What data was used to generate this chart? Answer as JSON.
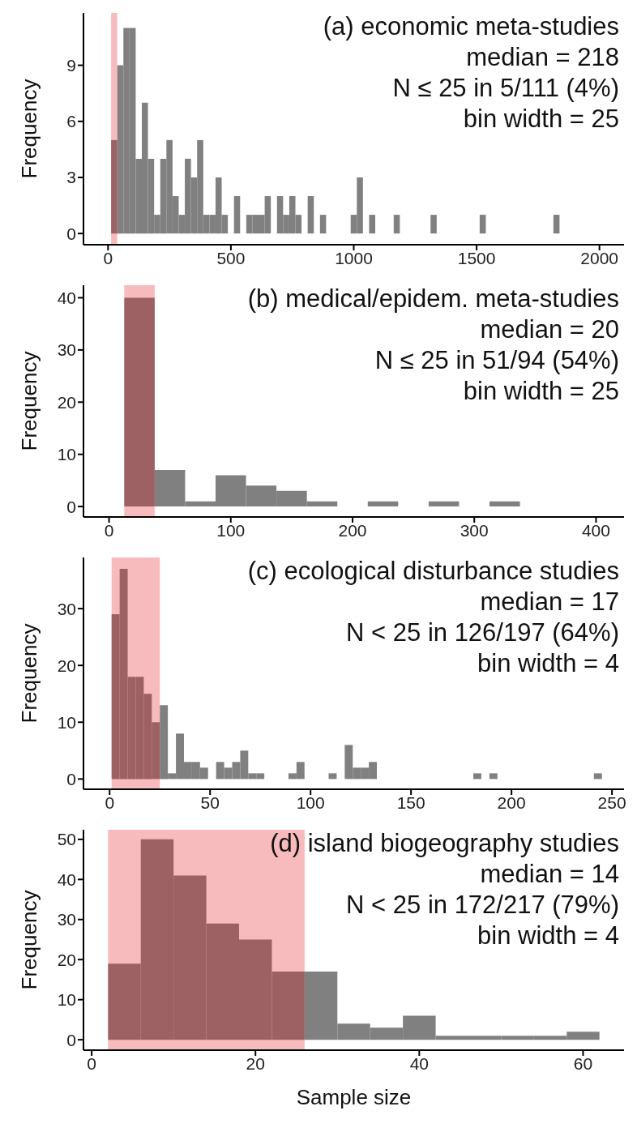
{
  "chart_data": [
    {
      "type": "histogram",
      "ylabel": "Frequency",
      "annotations": [
        "(a) economic meta-studies",
        "median = 218",
        "N ≤ 25 in 5/111 (4%)",
        "bin width = 25"
      ],
      "color": "#808080",
      "bins": [
        12.5,
        37.5,
        62.5,
        87.5,
        112.5,
        137.5,
        162.5,
        187.5,
        212.5,
        237.5,
        262.5,
        287.5,
        312.5,
        337.5,
        362.5,
        387.5,
        412.5,
        437.5,
        462.5,
        487.5,
        512.5,
        537.5,
        562.5,
        587.5,
        612.5,
        637.5,
        662.5,
        687.5,
        712.5,
        737.5,
        762.5,
        787.5,
        812.5,
        837.5,
        862.5,
        887.5,
        912.5,
        937.5,
        962.5,
        987.5,
        1012.5,
        1037.5,
        1062.5,
        1087.5,
        1112.5,
        1137.5,
        1162.5,
        1187.5,
        1212.5,
        1237.5,
        1262.5,
        1287.5,
        1312.5,
        1337.5,
        1362.5,
        1387.5,
        1412.5,
        1437.5,
        1462.5,
        1487.5,
        1512.5,
        1537.5,
        1562.5,
        1587.5,
        1612.5,
        1637.5,
        1662.5,
        1687.5,
        1712.5,
        1737.5,
        1762.5,
        1787.5,
        1812.5,
        1837.5
      ],
      "values": [
        5,
        9,
        11,
        11,
        4,
        7,
        4,
        1,
        4,
        5,
        2,
        1,
        4,
        3,
        5,
        1,
        1,
        3,
        1,
        0,
        2,
        0,
        1,
        1,
        1,
        2,
        0,
        2,
        1,
        2,
        1,
        0,
        2,
        0,
        1,
        0,
        0,
        0,
        0,
        1,
        3,
        0,
        1,
        0,
        0,
        0,
        1,
        0,
        0,
        0,
        0,
        0,
        1,
        0,
        0,
        0,
        0,
        0,
        0,
        0,
        1,
        0,
        0,
        0,
        0,
        0,
        0,
        0,
        0,
        0,
        0,
        0,
        1
      ],
      "bands": [
        {
          "axis": "x",
          "from": 12.5,
          "to": 37.5,
          "color": "#e8141c"
        }
      ],
      "xlim": [
        -100,
        2100
      ],
      "xticks": [
        0,
        500,
        1000,
        1500,
        2000
      ],
      "ylim": [
        -0.6,
        11.8
      ],
      "yticks": [
        0,
        3,
        6,
        9
      ]
    },
    {
      "type": "histogram",
      "ylabel": "Frequency",
      "annotations": [
        "(b) medical/epidem. meta-studies",
        "median = 20",
        "N ≤ 25 in 51/94 (54%)",
        "bin width = 25"
      ],
      "color": "#808080",
      "bins": [
        12.5,
        37.5,
        62.5,
        87.5,
        112.5,
        137.5,
        162.5,
        187.5,
        212.5,
        237.5,
        262.5,
        287.5,
        312.5,
        337.5
      ],
      "values": [
        40,
        7,
        1,
        6,
        4,
        3,
        1,
        0,
        1,
        0,
        1,
        0,
        1
      ],
      "bands": [
        {
          "axis": "x",
          "from": 12.5,
          "to": 37.5,
          "color": "#e8141c"
        }
      ],
      "xlim": [
        -21,
        423
      ],
      "xticks": [
        0,
        100,
        200,
        300,
        400
      ],
      "ylim": [
        -2,
        42.4
      ],
      "yticks": [
        0,
        10,
        20,
        30,
        40
      ]
    },
    {
      "type": "histogram",
      "ylabel": "Frequency",
      "annotations": [
        "(c) ecological disturbance studies",
        "median = 17",
        "N < 25 in 126/197 (64%)",
        "bin width = 4"
      ],
      "color": "#808080",
      "bins": [
        1,
        5,
        9,
        13,
        17,
        21,
        25,
        29,
        33,
        37,
        41,
        45,
        49,
        53,
        57,
        61,
        65,
        69,
        73,
        77,
        81,
        85,
        89,
        93,
        97,
        101,
        105,
        109,
        113,
        117,
        121,
        125,
        129,
        133,
        137,
        141,
        145,
        149,
        153,
        157,
        161,
        165,
        169,
        173,
        177,
        181,
        185,
        189,
        193,
        197,
        201,
        205,
        209,
        213,
        217,
        221,
        225,
        229,
        233,
        237,
        241,
        245
      ],
      "values": [
        29,
        37,
        18,
        18,
        15,
        10,
        13,
        1,
        8,
        3,
        3,
        2,
        0,
        3,
        2,
        3,
        5,
        1,
        1,
        0,
        0,
        0,
        1,
        3,
        0,
        0,
        0,
        1,
        0,
        6,
        2,
        2,
        3,
        0,
        0,
        0,
        0,
        0,
        0,
        0,
        0,
        0,
        0,
        0,
        0,
        1,
        0,
        1,
        0,
        0,
        0,
        0,
        0,
        0,
        0,
        0,
        0,
        0,
        0,
        0,
        1
      ],
      "bands": [
        {
          "axis": "x",
          "from": 1,
          "to": 25,
          "color": "#e8141c"
        }
      ],
      "xlim": [
        -13,
        256
      ],
      "xticks": [
        0,
        50,
        100,
        150,
        200,
        250
      ],
      "ylim": [
        -1.8,
        39
      ],
      "yticks": [
        0,
        10,
        20,
        30
      ]
    },
    {
      "type": "histogram",
      "xlabel": "Sample size",
      "ylabel": "Frequency",
      "annotations": [
        "(d) island biogeography studies",
        "median = 14",
        "N < 25 in 172/217 (79%)",
        "bin width = 4"
      ],
      "color": "#808080",
      "bins": [
        2,
        6,
        10,
        14,
        18,
        22,
        26,
        30,
        34,
        38,
        42,
        46,
        50,
        54,
        58,
        62
      ],
      "values": [
        19,
        50,
        41,
        29,
        25,
        17,
        17,
        4,
        3,
        6,
        1,
        1,
        1,
        1,
        2
      ],
      "bands": [
        {
          "axis": "x",
          "from": 2,
          "to": 26,
          "color": "#e8141c"
        }
      ],
      "xlim": [
        -1,
        65
      ],
      "xticks": [
        0,
        20,
        40,
        60
      ],
      "ylim": [
        -2.6,
        52.4
      ],
      "yticks": [
        0,
        10,
        20,
        30,
        40,
        50
      ]
    }
  ]
}
